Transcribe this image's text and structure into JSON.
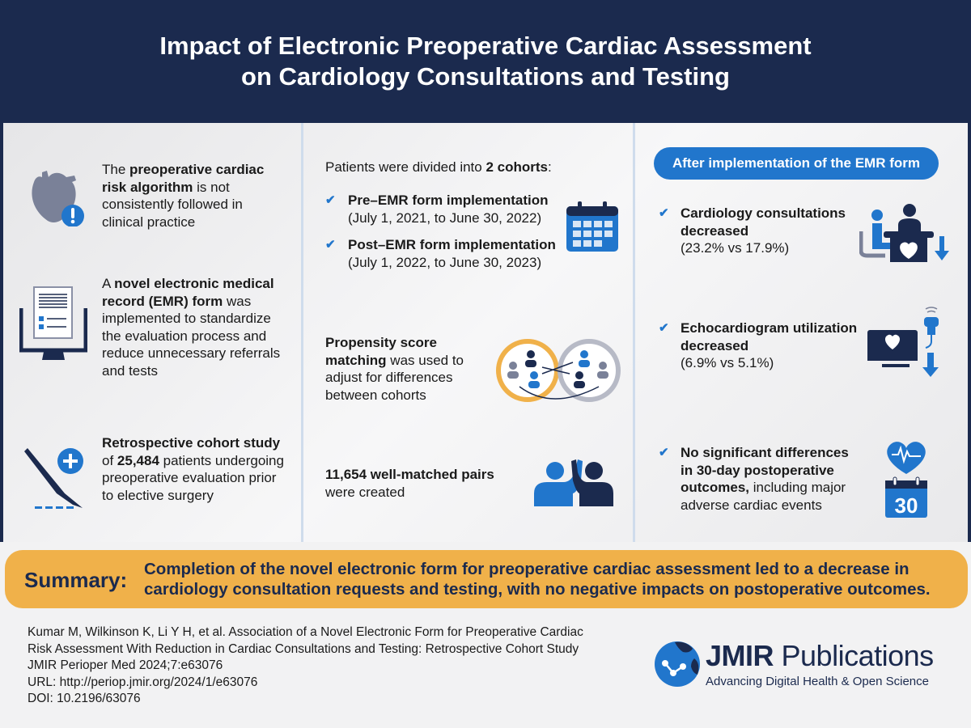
{
  "header": {
    "title_line1": "Impact of Electronic Preoperative Cardiac Assessment",
    "title_line2": "on Cardiology Consultations and Testing"
  },
  "left": {
    "item1": {
      "s1": "The ",
      "s2": "preoperative cardiac risk algorithm",
      "s3": " is not consistently followed in clinical practice"
    },
    "item2": {
      "s1": "A ",
      "s2": "novel electronic medical record (EMR) form",
      "s3": " was implemented to standardize the evaluation process and reduce unnecessary referrals and tests"
    },
    "item3": {
      "s1": "Retrospective cohort study",
      "s2": " of ",
      "s3": "25,484",
      "s4": " patients undergoing preoperative evaluation prior to elective surgery"
    }
  },
  "middle": {
    "intro": {
      "s1": "Patients were divided into ",
      "s2": "2 cohorts",
      ":": ":"
    },
    "cohorts": [
      {
        "name": "Pre–EMR form implementation",
        "dates": "(July 1, 2021, to June 30, 2022)"
      },
      {
        "name": "Post–EMR form implementation",
        "dates": "(July 1, 2022, to June 30, 2023)"
      }
    ],
    "psm": {
      "s1": "Propensity score matching",
      "s2": " was used to adjust for differences between cohorts"
    },
    "pairs": {
      "s1": "11,654 well-matched pairs",
      "s2": " were created"
    }
  },
  "right": {
    "pill": "After implementation of the EMR form",
    "results": [
      {
        "bold": "Cardiology consultations decreased",
        "rest": "(23.2% vs 17.9%)"
      },
      {
        "bold": "Echocardiogram utilization decreased",
        "rest": "(6.9% vs 5.1%)"
      },
      {
        "bold": "No significant differences in 30-day postoperative outcomes,",
        "rest": " including major adverse cardiac events"
      }
    ],
    "calendar_number": "30"
  },
  "summary": {
    "label": "Summary:",
    "text": "Completion of the novel electronic form for preoperative cardiac assessment led to a decrease in cardiology consultation requests and testing, with no negative impacts on postoperative outcomes."
  },
  "citation": [
    "Kumar M, Wilkinson K, Li Y H, et al. Association of a Novel Electronic Form for Preoperative Cardiac",
    "Risk Assessment With Reduction in Cardiac Consultations and Testing: Retrospective Cohort Study",
    "JMIR Perioper Med 2024;7:e63076",
    "URL: http://periop.jmir.org/2024/1/e63076",
    "DOI: 10.2196/63076"
  ],
  "logo": {
    "name_bold": "JMIR",
    "name_rest": " Publications",
    "tagline": "Advancing Digital Health & Open Science"
  },
  "colors": {
    "navy": "#1b2a4e",
    "blue": "#2176cc",
    "orange": "#f0b14a",
    "gray": "#7a8198"
  }
}
